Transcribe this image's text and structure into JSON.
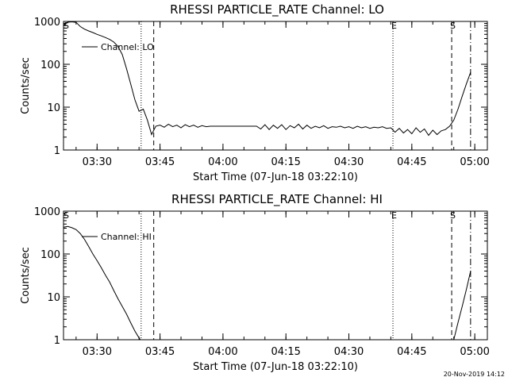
{
  "chart_data": [
    {
      "type": "line",
      "title": "RHESSI PARTICLE_RATE Channel: LO",
      "xlabel": "Start Time (07-Jun-18 03:22:10)",
      "ylabel": "Counts/sec",
      "yscale": "log",
      "ylim": [
        1,
        1000
      ],
      "xlim": [
        0,
        101
      ],
      "x_tick_labels": [
        "03:30",
        "03:45",
        "04:00",
        "04:15",
        "04:30",
        "04:45",
        "05:00"
      ],
      "x_ticks_min": [
        8,
        23,
        38,
        53,
        68,
        83,
        98
      ],
      "y_tick_labels": [
        "1",
        "10",
        "100",
        "1000"
      ],
      "y_ticks": [
        1,
        10,
        100,
        1000
      ],
      "markers": [
        {
          "x": 18.5,
          "style": "dotted",
          "letter": ""
        },
        {
          "x": 21.5,
          "style": "dashed",
          "letter": ""
        },
        {
          "x": 78.5,
          "style": "dotted",
          "letter": "E"
        },
        {
          "x": 92.5,
          "style": "dashed",
          "letter": "S"
        },
        {
          "x": 97,
          "style": "dashdot",
          "letter": ""
        }
      ],
      "corner_letter": "S",
      "legend": {
        "label": "Channel: LO",
        "placement": "top-left"
      },
      "series": [
        {
          "name": "Channel: LO",
          "points": [
            [
              0,
              800
            ],
            [
              1,
              960
            ],
            [
              2,
              980
            ],
            [
              3,
              950
            ],
            [
              4,
              760
            ],
            [
              5,
              660
            ],
            [
              6,
              600
            ],
            [
              7,
              550
            ],
            [
              8,
              500
            ],
            [
              9,
              460
            ],
            [
              10,
              420
            ],
            [
              11,
              380
            ],
            [
              12,
              330
            ],
            [
              13,
              260
            ],
            [
              14,
              170
            ],
            [
              15,
              80
            ],
            [
              16,
              35
            ],
            [
              17,
              15
            ],
            [
              18,
              8
            ],
            [
              19,
              9
            ],
            [
              20,
              5
            ],
            [
              21,
              2.3
            ],
            [
              22,
              3.6
            ],
            [
              23,
              3.8
            ],
            [
              24,
              3.4
            ],
            [
              25,
              4
            ],
            [
              26,
              3.5
            ],
            [
              27,
              3.8
            ],
            [
              28,
              3.3
            ],
            [
              29,
              3.9
            ],
            [
              30,
              3.5
            ],
            [
              31,
              3.8
            ],
            [
              32,
              3.4
            ],
            [
              33,
              3.7
            ],
            [
              34,
              3.5
            ],
            [
              35,
              3.6
            ],
            [
              36,
              3.6
            ],
            [
              37,
              3.6
            ],
            [
              38,
              3.6
            ],
            [
              39,
              3.6
            ],
            [
              40,
              3.6
            ],
            [
              41,
              3.6
            ],
            [
              42,
              3.6
            ],
            [
              43,
              3.6
            ],
            [
              44,
              3.6
            ],
            [
              45,
              3.6
            ],
            [
              46,
              3.6
            ],
            [
              47,
              3.1
            ],
            [
              48,
              3.9
            ],
            [
              49,
              3.0
            ],
            [
              50,
              3.8
            ],
            [
              51,
              3.2
            ],
            [
              52,
              3.9
            ],
            [
              53,
              3.0
            ],
            [
              54,
              3.7
            ],
            [
              55,
              3.3
            ],
            [
              56,
              4.0
            ],
            [
              57,
              3.1
            ],
            [
              58,
              3.8
            ],
            [
              59,
              3.2
            ],
            [
              60,
              3.6
            ],
            [
              61,
              3.3
            ],
            [
              62,
              3.7
            ],
            [
              63,
              3.2
            ],
            [
              64,
              3.5
            ],
            [
              65,
              3.4
            ],
            [
              66,
              3.6
            ],
            [
              67,
              3.3
            ],
            [
              68,
              3.5
            ],
            [
              69,
              3.2
            ],
            [
              70,
              3.6
            ],
            [
              71,
              3.3
            ],
            [
              72,
              3.5
            ],
            [
              73,
              3.2
            ],
            [
              74,
              3.4
            ],
            [
              75,
              3.3
            ],
            [
              76,
              3.5
            ],
            [
              77,
              3.2
            ],
            [
              78,
              3.3
            ],
            [
              79,
              2.6
            ],
            [
              80,
              3.2
            ],
            [
              81,
              2.5
            ],
            [
              82,
              3.0
            ],
            [
              83,
              2.4
            ],
            [
              84,
              3.3
            ],
            [
              85,
              2.6
            ],
            [
              86,
              3.1
            ],
            [
              87,
              2.2
            ],
            [
              88,
              2.9
            ],
            [
              89,
              2.3
            ],
            [
              90,
              2.8
            ],
            [
              91,
              3.0
            ],
            [
              92,
              3.6
            ],
            [
              93,
              5
            ],
            [
              94,
              9
            ],
            [
              95,
              18
            ],
            [
              96,
              35
            ],
            [
              97,
              65
            ]
          ]
        }
      ]
    },
    {
      "type": "line",
      "title": "RHESSI PARTICLE_RATE Channel: HI",
      "xlabel": "Start Time (07-Jun-18 03:22:10)",
      "ylabel": "Counts/sec",
      "yscale": "log",
      "ylim": [
        1,
        1000
      ],
      "xlim": [
        0,
        101
      ],
      "x_tick_labels": [
        "03:30",
        "03:45",
        "04:00",
        "04:15",
        "04:30",
        "04:45",
        "05:00"
      ],
      "x_ticks_min": [
        8,
        23,
        38,
        53,
        68,
        83,
        98
      ],
      "y_tick_labels": [
        "1",
        "10",
        "100",
        "1000"
      ],
      "y_ticks": [
        1,
        10,
        100,
        1000
      ],
      "markers": [
        {
          "x": 18.5,
          "style": "dotted",
          "letter": ""
        },
        {
          "x": 21.5,
          "style": "dashed",
          "letter": ""
        },
        {
          "x": 78.5,
          "style": "dotted",
          "letter": "E"
        },
        {
          "x": 92.5,
          "style": "dashed",
          "letter": "S"
        },
        {
          "x": 97,
          "style": "dashdot",
          "letter": ""
        }
      ],
      "corner_letter": "S",
      "legend": {
        "label": "Channel: HI",
        "placement": "top-left"
      },
      "series": [
        {
          "name": "Channel: HI",
          "points": [
            [
              0,
              420
            ],
            [
              1,
              440
            ],
            [
              2,
              410
            ],
            [
              3,
              370
            ],
            [
              4,
              300
            ],
            [
              5,
              220
            ],
            [
              6,
              150
            ],
            [
              7,
              100
            ],
            [
              8,
              70
            ],
            [
              9,
              48
            ],
            [
              10,
              32
            ],
            [
              11,
              22
            ],
            [
              12,
              14
            ],
            [
              13,
              9
            ],
            [
              14,
              6
            ],
            [
              15,
              4
            ],
            [
              16,
              2.5
            ],
            [
              17,
              1.6
            ],
            [
              18,
              1.1
            ],
            [
              18.3,
              1
            ]
          ]
        },
        {
          "name": "Channel: HI",
          "points": [
            [
              93,
              1
            ],
            [
              94,
              2.5
            ],
            [
              95,
              6
            ],
            [
              96,
              15
            ],
            [
              97,
              40
            ]
          ]
        }
      ]
    }
  ],
  "footer": {
    "timestamp": "20-Nov-2019 14:12"
  }
}
